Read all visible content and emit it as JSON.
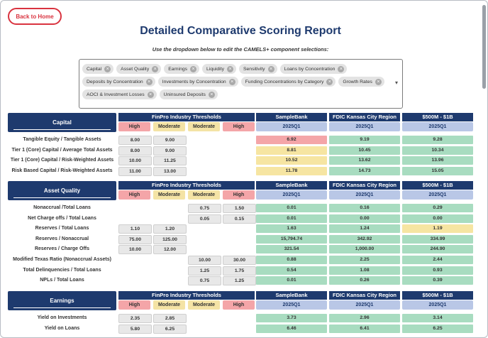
{
  "nav": {
    "back_label": "Back to Home"
  },
  "page": {
    "title": "Detailed Comparative Scoring Report",
    "subtitle": "Use the dropdown below to edit the CAMELS+ component selections:"
  },
  "selector": {
    "chips": [
      "Capital",
      "Asset Quality",
      "Earnings",
      "Liquidity",
      "Sensitivity",
      "Loans by Concentration",
      "Deposits by Concentration",
      "Investments by Concentration",
      "Funding Concentrations by Category",
      "Growth Rates",
      "AOCI & Investment Losses",
      "Uninsured Deposits"
    ],
    "remove_glyph": "×",
    "dropdown_glyph": "▾"
  },
  "table_headers": {
    "finpro": "FinPro Industry Thresholds",
    "bank": "SampleBank",
    "region": "FDIC Kansas City Region",
    "peer": "$500M - $1B",
    "high": "High",
    "moderate": "Moderate",
    "period": "2025Q1"
  },
  "colors": {
    "navy": "#1e3a6e",
    "green": "#a8dcc0",
    "yellow": "#f6e5a2",
    "red": "#f4a5a8",
    "accent_red": "#d9333f"
  },
  "sections": [
    {
      "name": "Capital",
      "direction": "low_bad",
      "rows": [
        {
          "label": "Tangible Equity / Tangible Assets",
          "t": [
            "8.00",
            "9.00",
            "",
            ""
          ],
          "bank": "6.92",
          "bank_color": "red",
          "region": "9.19",
          "region_color": "green",
          "peer": "9.28",
          "peer_color": "green"
        },
        {
          "label": "Tier 1 (Core) Capital / Average Total Assets",
          "t": [
            "8.00",
            "9.00",
            "",
            ""
          ],
          "bank": "8.81",
          "bank_color": "yellow",
          "region": "10.45",
          "region_color": "green",
          "peer": "10.34",
          "peer_color": "green"
        },
        {
          "label": "Tier 1 (Core) Capital / Risk-Weighted Assets",
          "t": [
            "10.00",
            "11.25",
            "",
            ""
          ],
          "bank": "10.52",
          "bank_color": "yellow",
          "region": "13.62",
          "region_color": "green",
          "peer": "13.96",
          "peer_color": "green"
        },
        {
          "label": "Risk Based Capital / Risk-Weighted Assets",
          "t": [
            "11.00",
            "13.00",
            "",
            ""
          ],
          "bank": "11.78",
          "bank_color": "yellow",
          "region": "14.73",
          "region_color": "green",
          "peer": "15.05",
          "peer_color": "green"
        }
      ]
    },
    {
      "name": "Asset Quality",
      "direction": "mixed",
      "rows": [
        {
          "label": "Nonaccrual /Total Loans",
          "t": [
            "",
            "",
            "0.75",
            "1.50"
          ],
          "bank": "0.01",
          "bank_color": "green",
          "region": "0.16",
          "region_color": "green",
          "peer": "0.29",
          "peer_color": "green"
        },
        {
          "label": "Net Charge offs / Total Loans",
          "t": [
            "",
            "",
            "0.05",
            "0.15"
          ],
          "bank": "0.01",
          "bank_color": "green",
          "region": "0.00",
          "region_color": "green",
          "peer": "0.00",
          "peer_color": "green"
        },
        {
          "label": "Reserves / Total Loans",
          "t": [
            "1.10",
            "1.20",
            "",
            ""
          ],
          "bank": "1.63",
          "bank_color": "green",
          "region": "1.24",
          "region_color": "green",
          "peer": "1.19",
          "peer_color": "yellow"
        },
        {
          "label": "Reserves / Nonaccrual",
          "t": [
            "75.00",
            "125.00",
            "",
            ""
          ],
          "bank": "15,794.74",
          "bank_color": "green",
          "region": "342.92",
          "region_color": "green",
          "peer": "334.99",
          "peer_color": "green"
        },
        {
          "label": "Reserves / Charge Offs",
          "t": [
            "10.00",
            "12.00",
            "",
            ""
          ],
          "bank": "321.54",
          "bank_color": "green",
          "region": "1,000.00",
          "region_color": "green",
          "peer": "244.90",
          "peer_color": "green"
        },
        {
          "label": "Modified Texas Ratio (Nonaccrual Assets)",
          "t": [
            "",
            "",
            "10.00",
            "30.00"
          ],
          "bank": "0.88",
          "bank_color": "green",
          "region": "2.25",
          "region_color": "green",
          "peer": "2.44",
          "peer_color": "green"
        },
        {
          "label": "Total Delinquencies / Total Loans",
          "t": [
            "",
            "",
            "1.25",
            "1.75"
          ],
          "bank": "0.54",
          "bank_color": "green",
          "region": "1.08",
          "region_color": "green",
          "peer": "0.93",
          "peer_color": "green"
        },
        {
          "label": "NPLs / Total Loans",
          "t": [
            "",
            "",
            "0.75",
            "1.25"
          ],
          "bank": "0.01",
          "bank_color": "green",
          "region": "0.26",
          "region_color": "green",
          "peer": "0.39",
          "peer_color": "green"
        }
      ]
    },
    {
      "name": "Earnings",
      "direction": "low_bad",
      "rows": [
        {
          "label": "Yield on Investments",
          "t": [
            "2.35",
            "2.85",
            "",
            ""
          ],
          "bank": "3.73",
          "bank_color": "green",
          "region": "2.96",
          "region_color": "green",
          "peer": "3.14",
          "peer_color": "green"
        },
        {
          "label": "Yield on Loans",
          "t": [
            "5.80",
            "6.25",
            "",
            ""
          ],
          "bank": "6.46",
          "bank_color": "green",
          "region": "6.41",
          "region_color": "green",
          "peer": "6.25",
          "peer_color": "green"
        }
      ]
    }
  ]
}
